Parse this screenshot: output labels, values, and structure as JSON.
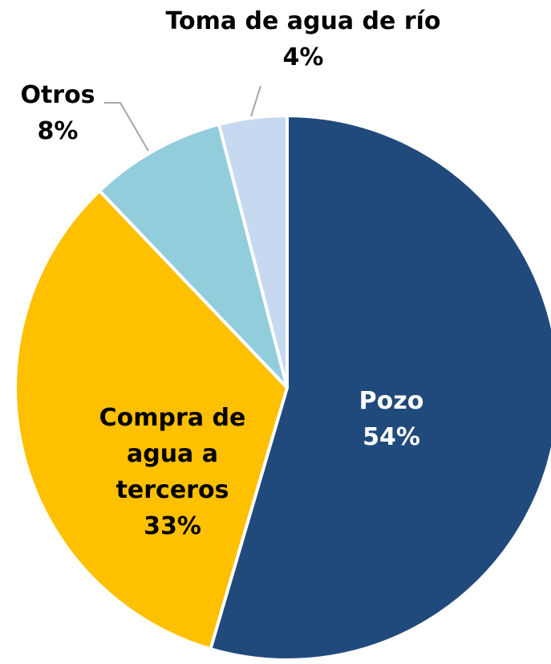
{
  "chart_data": {
    "type": "pie",
    "categories": [
      "Pozo",
      "Compra de agua a terceros",
      "Otros",
      "Toma de agua de río"
    ],
    "values": [
      54,
      33,
      8,
      4
    ],
    "value_labels": [
      "54%",
      "33%",
      "8%",
      "4%"
    ],
    "colors": [
      "#214a7c",
      "#ffc000",
      "#92cddc",
      "#c6d9f1"
    ]
  }
}
